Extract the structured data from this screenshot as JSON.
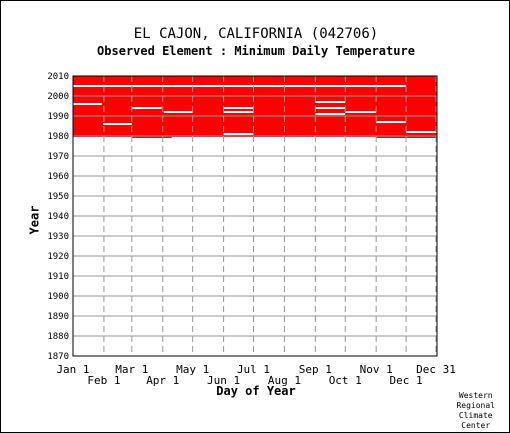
{
  "title": "EL CAJON, CALIFORNIA   (042706)",
  "subtitle": "Observed Element : Minimum Daily Temperature",
  "credit": [
    "Western",
    "Regional",
    "Climate",
    "Center"
  ],
  "chart_data": {
    "type": "heatmap",
    "title": "EL CAJON, CALIFORNIA   (042706)",
    "subtitle": "Observed Element : Minimum Daily Temperature",
    "xlabel": "Day of Year",
    "ylabel": "Year",
    "ylim": [
      1870,
      2010
    ],
    "xlim": [
      1,
      366
    ],
    "grid": true,
    "observed_color": "#ff0000",
    "y_ticks": [
      1870,
      1880,
      1890,
      1900,
      1910,
      1920,
      1930,
      1940,
      1950,
      1960,
      1970,
      1980,
      1990,
      2000,
      2010
    ],
    "x_ticks_top_row": [
      {
        "label": "Jan 1",
        "day": 1
      },
      {
        "label": "Mar 1",
        "day": 60
      },
      {
        "label": "May 1",
        "day": 121
      },
      {
        "label": "Jul 1",
        "day": 182
      },
      {
        "label": "Sep 1",
        "day": 244
      },
      {
        "label": "Nov 1",
        "day": 305
      },
      {
        "label": "Dec 31",
        "day": 365
      }
    ],
    "x_ticks_bottom_row": [
      {
        "label": "Feb 1",
        "day": 32
      },
      {
        "label": "Apr 1",
        "day": 91
      },
      {
        "label": "Jun 1",
        "day": 152
      },
      {
        "label": "Aug 1",
        "day": 213
      },
      {
        "label": "Oct 1",
        "day": 274
      },
      {
        "label": "Dec 1",
        "day": 335
      }
    ],
    "observed_period": {
      "start_year": 1979,
      "end_year": 2010
    },
    "missing_blocks": [
      {
        "year_start": 1995.5,
        "year_end": 1996.5,
        "day_start": 1,
        "day_end": 30
      },
      {
        "year_start": 1985.5,
        "year_end": 1986.5,
        "day_start": 31,
        "day_end": 60
      },
      {
        "year_start": 1993.5,
        "year_end": 1994.5,
        "day_start": 60,
        "day_end": 90
      },
      {
        "year_start": 1991.5,
        "year_end": 1992.5,
        "day_start": 92,
        "day_end": 121
      },
      {
        "year_start": 1993.5,
        "year_end": 1994.5,
        "day_start": 152,
        "day_end": 182
      },
      {
        "year_start": 1991.5,
        "year_end": 1992.5,
        "day_start": 152,
        "day_end": 182
      },
      {
        "year_start": 1980.5,
        "year_end": 1981.5,
        "day_start": 152,
        "day_end": 182
      },
      {
        "year_start": 1996.5,
        "year_end": 1997.5,
        "day_start": 244,
        "day_end": 274
      },
      {
        "year_start": 1993.5,
        "year_end": 1994.5,
        "day_start": 244,
        "day_end": 274
      },
      {
        "year_start": 1990.5,
        "year_end": 1991.5,
        "day_start": 244,
        "day_end": 274
      },
      {
        "year_start": 1991.5,
        "year_end": 1992.5,
        "day_start": 274,
        "day_end": 305
      },
      {
        "year_start": 1986.5,
        "year_end": 1987.5,
        "day_start": 305,
        "day_end": 335
      },
      {
        "year_start": 1981.5,
        "year_end": 1982.5,
        "day_start": 335,
        "day_end": 366
      },
      {
        "year_start": 2004.5,
        "year_end": 2005.5,
        "day_start": 0,
        "day_end": 335
      },
      {
        "year_start": 1978.5,
        "year_end": 1979.5,
        "day_start": 0,
        "day_end": 60
      },
      {
        "year_start": 1978.5,
        "year_end": 1979.5,
        "day_start": 100,
        "day_end": 305
      }
    ]
  }
}
